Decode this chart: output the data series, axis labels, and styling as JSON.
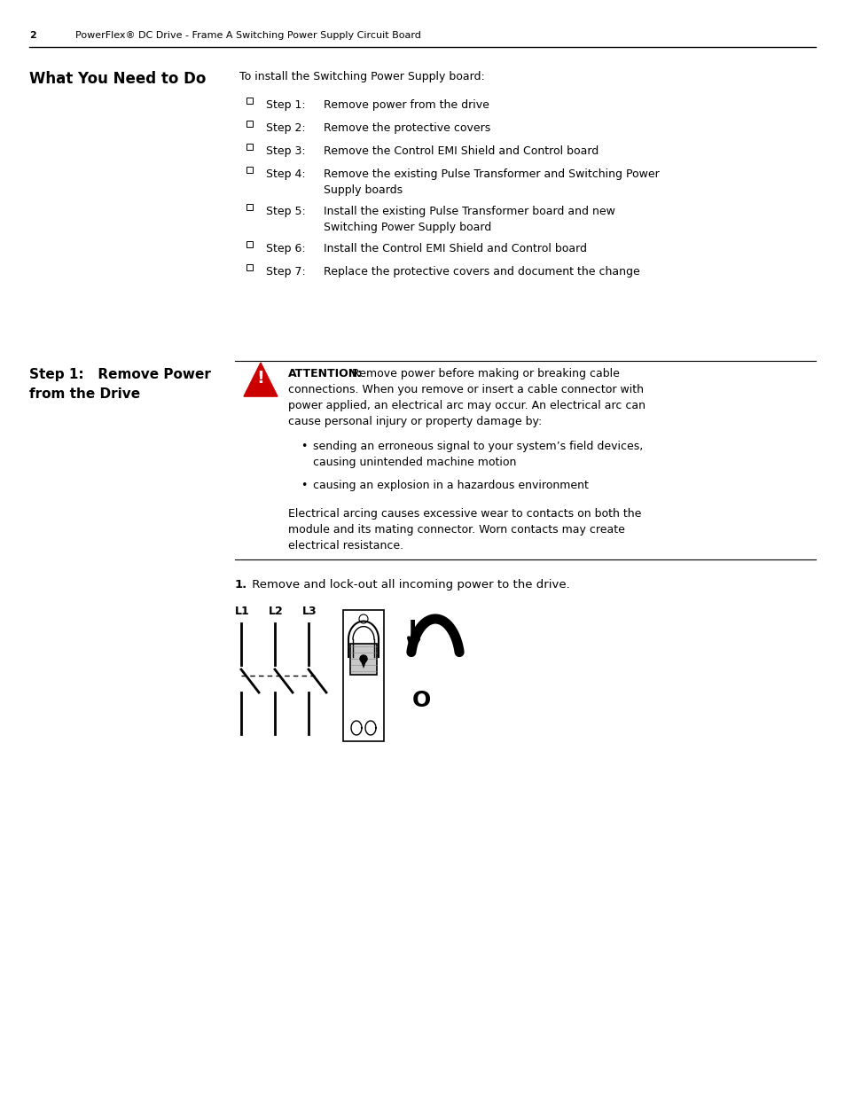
{
  "page_num": "2",
  "header_text": "PowerFlex® DC Drive - Frame A Switching Power Supply Circuit Board",
  "section1_title": "What You Need to Do",
  "section1_intro": "To install the Switching Power Supply board:",
  "steps": [
    {
      "num": "Step 1:",
      "text": "Remove power from the drive",
      "multiline": false
    },
    {
      "num": "Step 2:",
      "text": "Remove the protective covers",
      "multiline": false
    },
    {
      "num": "Step 3:",
      "text": "Remove the Control EMI Shield and Control board",
      "multiline": false
    },
    {
      "num": "Step 4:",
      "line1": "Remove the existing Pulse Transformer and Switching Power",
      "line2": "Supply boards",
      "multiline": true
    },
    {
      "num": "Step 5:",
      "line1": "Install the existing Pulse Transformer board and new",
      "line2": "Switching Power Supply board",
      "multiline": true
    },
    {
      "num": "Step 6:",
      "text": "Install the Control EMI Shield and Control board",
      "multiline": false
    },
    {
      "num": "Step 7:",
      "text": "Replace the protective covers and document the change",
      "multiline": false
    }
  ],
  "section2_title_line1": "Step 1:   Remove Power",
  "section2_title_line2": "from the Drive",
  "attention_bold": "ATTENTION:",
  "attn_line1": " Remove power before making or breaking cable",
  "attn_line2": "connections. When you remove or insert a cable connector with",
  "attn_line3": "power applied, an electrical arc may occur. An electrical arc can",
  "attn_line4": "cause personal injury or property damage by:",
  "bullet1_line1": "sending an erroneous signal to your system’s field devices,",
  "bullet1_line2": "causing unintended machine motion",
  "bullet2": "causing an explosion in a hazardous environment",
  "footer_line1": "Electrical arcing causes excessive wear to contacts on both the",
  "footer_line2": "module and its mating connector. Worn contacts may create",
  "footer_line3": "electrical resistance.",
  "step1_num": "1.",
  "step1_text": " Remove and lock-out all incoming power to the drive.",
  "bg_color": "#ffffff",
  "text_color": "#000000"
}
